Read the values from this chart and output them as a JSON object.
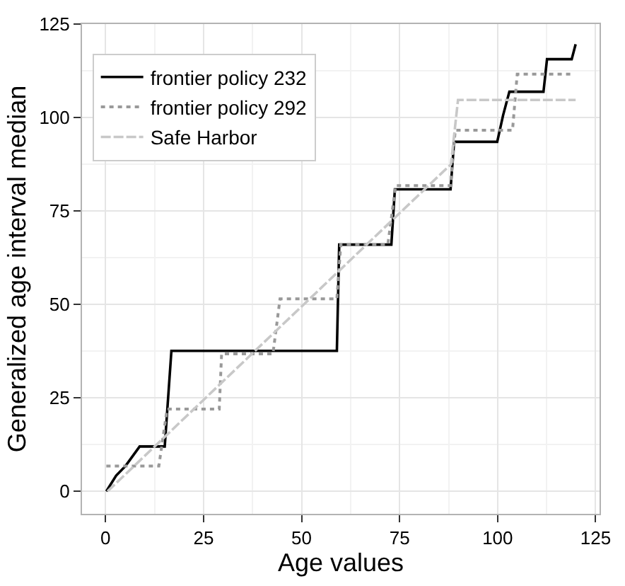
{
  "chart_data": {
    "type": "step",
    "xlabel": "Age values",
    "ylabel": "Generalized age interval median",
    "xlim": [
      -6,
      126
    ],
    "ylim": [
      -6,
      125
    ],
    "xticks": [
      0,
      25,
      50,
      75,
      100,
      125
    ],
    "yticks": [
      0,
      25,
      50,
      75,
      100,
      125
    ],
    "grid": true,
    "legend": "top left",
    "series": [
      {
        "name": "frontier policy 232",
        "color": "#000000",
        "line_style": "solid",
        "x": [
          0.2,
          2.7,
          5.1,
          8.7,
          15.1,
          16.8,
          59,
          59.6,
          72.9,
          73.8,
          88,
          88.9,
          99.9,
          101.4,
          103,
          111.7,
          112.6,
          118.9,
          119.9
        ],
        "values": [
          0,
          4.2,
          6.8,
          12,
          12,
          37.6,
          37.6,
          66,
          66,
          80.8,
          80.8,
          93.5,
          93.5,
          100.6,
          106.9,
          106.9,
          115.6,
          115.6,
          119.6
        ]
      },
      {
        "name": "frontier policy 292",
        "color": "#999999",
        "line_style": "dotted",
        "x": [
          0.2,
          13.6,
          15.7,
          18.4,
          29,
          29.6,
          42.7,
          44.5,
          59,
          60,
          72,
          74,
          88,
          89.2,
          103.8,
          105,
          118.9
        ],
        "values": [
          6.8,
          6.8,
          22,
          22,
          22,
          36.8,
          36.8,
          51.5,
          51.5,
          66,
          66,
          81.8,
          81.8,
          96.6,
          96.6,
          111.6,
          111.6
        ]
      },
      {
        "name": "Safe Harbor",
        "color": "#c8c8c8",
        "line_style": "dashed",
        "x": [
          0.5,
          88.1,
          89.9,
          119.9
        ],
        "values": [
          0,
          87.5,
          104.7,
          104.7
        ]
      }
    ]
  }
}
